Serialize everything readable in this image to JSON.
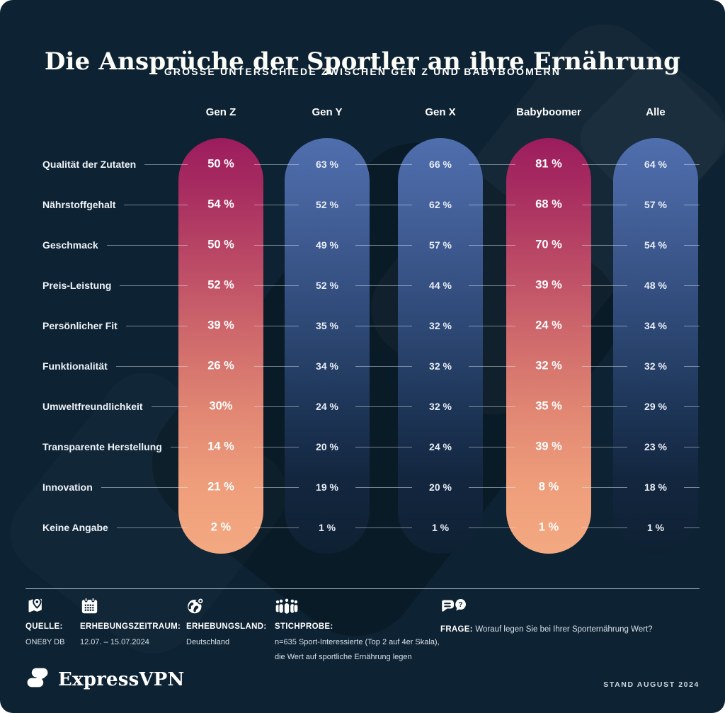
{
  "header": {
    "title": "Die Ansprüche der Sportler an ihre Ernährung",
    "subtitle": "GROSSE UNTERSCHIEDE ZWISCHEN GEN Z UND BABYBOOMERN"
  },
  "chart_data": {
    "type": "table",
    "title": "Die Ansprüche der Sportler an ihre Ernährung",
    "subtitle": "GROSSE UNTERSCHIEDE ZWISCHEN GEN Z UND BABYBOOMERN",
    "unit": "%",
    "categories": [
      "Qualität der Zutaten",
      "Nährstoffgehalt",
      "Geschmack",
      "Preis-Leistung",
      "Persönlicher Fit",
      "Funktionalität",
      "Umweltfreundlichkeit",
      "Transparente Herstellung",
      "Innovation",
      "Keine Angabe"
    ],
    "series": [
      {
        "name": "Gen Z",
        "palette": "warm",
        "values": [
          50,
          54,
          50,
          52,
          39,
          26,
          30,
          14,
          21,
          2
        ],
        "display": [
          "50 %",
          "54 %",
          "50 %",
          "52 %",
          "39 %",
          "26 %",
          "30%",
          "14 %",
          "21 %",
          "2 %"
        ]
      },
      {
        "name": "Gen Y",
        "palette": "cool",
        "values": [
          63,
          52,
          49,
          52,
          35,
          34,
          24,
          20,
          19,
          1
        ]
      },
      {
        "name": "Gen X",
        "palette": "cool",
        "values": [
          66,
          62,
          57,
          44,
          32,
          32,
          32,
          24,
          20,
          1
        ]
      },
      {
        "name": "Babyboomer",
        "palette": "warm",
        "values": [
          81,
          68,
          70,
          39,
          24,
          32,
          35,
          39,
          8,
          1
        ]
      },
      {
        "name": "Alle",
        "palette": "cool",
        "values": [
          64,
          57,
          54,
          48,
          34,
          32,
          29,
          23,
          18,
          1
        ]
      }
    ]
  },
  "meta": {
    "items": [
      {
        "icon": "map-pin-icon",
        "label": "QUELLE:",
        "lines": [
          "ONE8Y DB"
        ]
      },
      {
        "icon": "calendar-icon",
        "label": "ERHEBUNGSZEITRAUM:",
        "lines": [
          "12.07. – 15.07.2024"
        ]
      },
      {
        "icon": "globe-pin-icon",
        "label": "ERHEBUNGSLAND:",
        "lines": [
          "Deutschland"
        ]
      },
      {
        "icon": "people-icon",
        "label": "STICHPROBE:",
        "lines": [
          "n=635 Sport-Interessierte (Top 2 auf 4er Skala),",
          "die Wert auf sportliche Ernährung legen"
        ]
      },
      {
        "icon": "speech-question-icon",
        "label": "FRAGE:",
        "inline": "Worauf legen Sie bei Ihrer Sporternährung Wert?"
      }
    ]
  },
  "brand": {
    "name": "ExpressVPN",
    "stand_label": "STAND AUGUST 2024"
  },
  "colors": {
    "background": "#0d2232",
    "warm_top": "#9c1c5e",
    "warm_bottom": "#f3a981",
    "cool_top": "#4f6ead",
    "cool_bottom": "#0e2133",
    "line": "#dee8f0",
    "text": "#ffffff",
    "muted_text": "#d8e1ea"
  }
}
